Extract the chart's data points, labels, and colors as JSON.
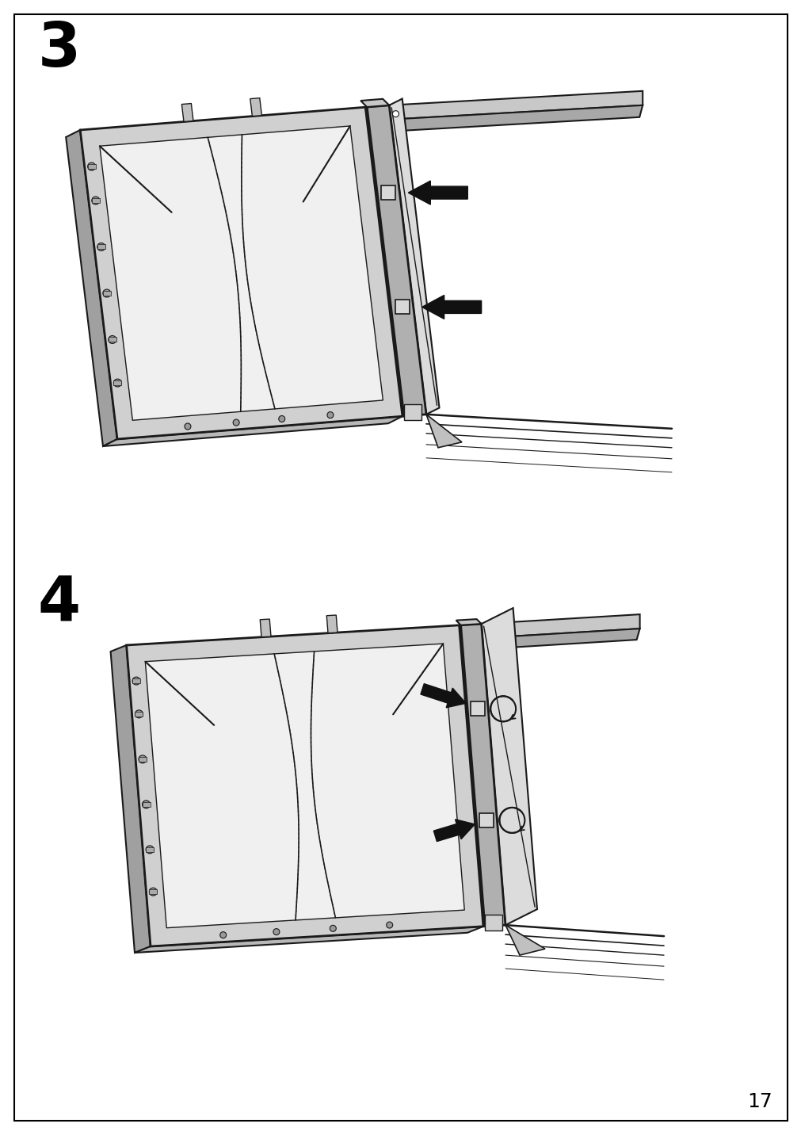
{
  "page_number": "17",
  "step3_label": "3",
  "step4_label": "4",
  "bg_color": "#ffffff",
  "border_color": "#000000",
  "gray1": "#c8c8c8",
  "gray2": "#a8a8a8",
  "gray3": "#888888",
  "gray4": "#606060",
  "light_gray": "#e8e8e8",
  "white": "#f8f8f8",
  "stroke": "#1a1a1a",
  "arrow_color": "#111111"
}
